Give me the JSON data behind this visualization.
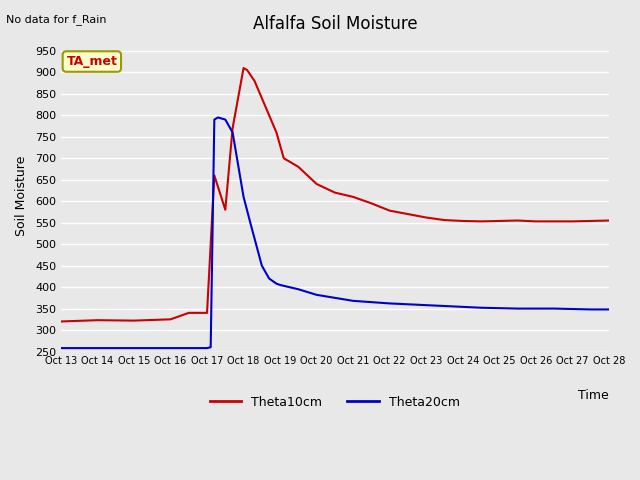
{
  "title": "Alfalfa Soil Moisture",
  "subtitle": "No data for f_Rain",
  "ylabel": "Soil Moisture",
  "xlabel": "Time",
  "ylim": [
    250,
    975
  ],
  "yticks": [
    250,
    300,
    350,
    400,
    450,
    500,
    550,
    600,
    650,
    700,
    750,
    800,
    850,
    900,
    950
  ],
  "xtick_labels": [
    "Oct 13",
    "Oct 14",
    "Oct 15",
    "Oct 16",
    "Oct 17",
    "Oct 18",
    "Oct 19",
    "Oct 20",
    "Oct 21",
    "Oct 22",
    "Oct 23",
    "Oct 24",
    "Oct 25",
    "Oct 26",
    "Oct 27",
    "Oct 28"
  ],
  "bg_color": "#e8e8e8",
  "plot_bg_color": "#e8e8e8",
  "grid_color": "#ffffff",
  "red_color": "#cc0000",
  "blue_color": "#0000cc",
  "legend_box_color": "#ffffcc",
  "legend_box_edge": "#999900",
  "annotation_text": "TA_met",
  "annotation_color": "#cc0000",
  "theta10_x": [
    0,
    1,
    2,
    3,
    3.5,
    4,
    4.2,
    4.5,
    4.7,
    5,
    5.1,
    5.3,
    5.5,
    5.7,
    5.9,
    6,
    6.1,
    6.5,
    7,
    7.5,
    8,
    8.5,
    9,
    9.5,
    10,
    10.5,
    11,
    11.5,
    12,
    12.5,
    13,
    13.5,
    14,
    14.5,
    15
  ],
  "theta10_y": [
    320,
    323,
    322,
    325,
    340,
    340,
    660,
    580,
    770,
    910,
    905,
    880,
    840,
    800,
    760,
    730,
    700,
    680,
    640,
    620,
    610,
    595,
    578,
    570,
    562,
    556,
    554,
    553,
    554,
    555,
    553,
    553,
    553,
    554,
    555
  ],
  "theta20_x": [
    0,
    1,
    2,
    3,
    3.5,
    3.8,
    4,
    4.1,
    4.2,
    4.3,
    4.5,
    4.7,
    5,
    5.2,
    5.5,
    5.7,
    5.9,
    6,
    6.5,
    7,
    7.5,
    8,
    8.5,
    9,
    9.5,
    10,
    10.5,
    11,
    11.5,
    12,
    12.5,
    13,
    13.5,
    14,
    14.5,
    15
  ],
  "theta20_y": [
    258,
    258,
    258,
    258,
    258,
    258,
    258,
    260,
    790,
    795,
    790,
    760,
    610,
    545,
    450,
    420,
    408,
    405,
    395,
    382,
    375,
    368,
    365,
    362,
    360,
    358,
    356,
    354,
    352,
    351,
    350,
    350,
    350,
    349,
    348,
    348
  ]
}
